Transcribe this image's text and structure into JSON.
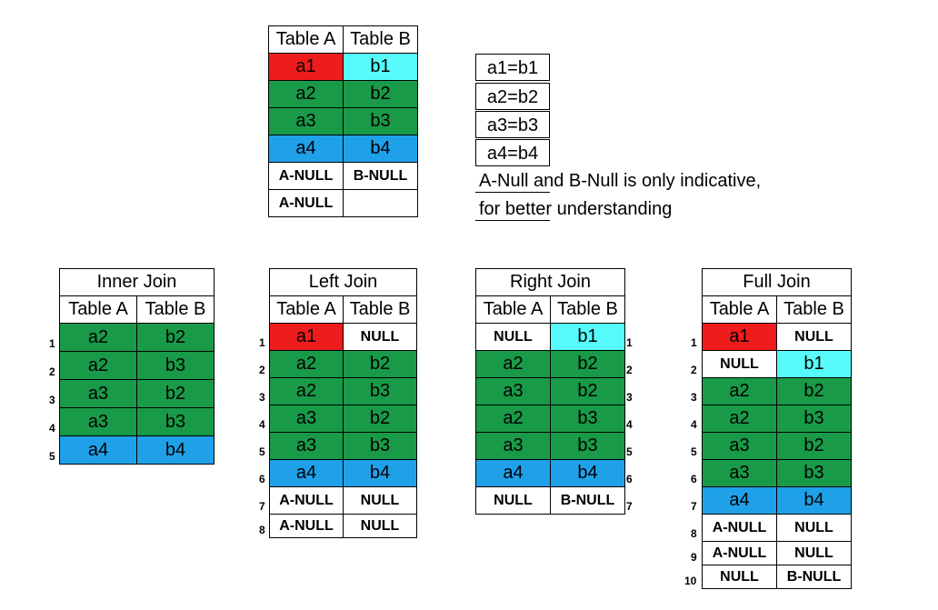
{
  "source": {
    "header": [
      "Table A",
      "Table B"
    ],
    "rows": [
      {
        "a": "a1",
        "b": "b1",
        "ca": "red",
        "cb": "cyan"
      },
      {
        "a": "a2",
        "b": "b2",
        "ca": "green",
        "cb": "green"
      },
      {
        "a": "a3",
        "b": "b3",
        "ca": "green",
        "cb": "green"
      },
      {
        "a": "a4",
        "b": "b4",
        "ca": "blue",
        "cb": "blue"
      },
      {
        "a": "A-NULL",
        "b": "B-NULL",
        "ca": "white",
        "cb": "white",
        "bold": true
      },
      {
        "a": "A-NULL",
        "b": "",
        "ca": "white",
        "cb": "white",
        "bold": true
      }
    ]
  },
  "equalities": [
    "a1=b1",
    "a2=b2",
    "a3=b3",
    "a4=b4"
  ],
  "note": [
    "A-Null and B-Null is only indicative,",
    "for better understanding"
  ],
  "colors": {
    "red": "#ee1c1c",
    "cyan": "#57fbfb",
    "green": "#199a48",
    "blue": "#1fa1e9",
    "white": "#ffffff"
  },
  "joins": [
    {
      "title": "Inner Join",
      "header": [
        "Table A",
        "Table B"
      ],
      "rows": [
        {
          "n": "1",
          "a": "a2",
          "b": "b2",
          "ca": "green",
          "cb": "green"
        },
        {
          "n": "2",
          "a": "a2",
          "b": "b3",
          "ca": "green",
          "cb": "green"
        },
        {
          "n": "3",
          "a": "a3",
          "b": "b2",
          "ca": "green",
          "cb": "green"
        },
        {
          "n": "4",
          "a": "a3",
          "b": "b3",
          "ca": "green",
          "cb": "green"
        },
        {
          "n": "5",
          "a": "a4",
          "b": "b4",
          "ca": "blue",
          "cb": "blue"
        }
      ]
    },
    {
      "title": "Left Join",
      "header": [
        "Table A",
        "Table B"
      ],
      "rows": [
        {
          "n": "1",
          "a": "a1",
          "b": "NULL",
          "ca": "red",
          "cb": "white",
          "boldB": true
        },
        {
          "n": "2",
          "a": "a2",
          "b": "b2",
          "ca": "green",
          "cb": "green"
        },
        {
          "n": "3",
          "a": "a2",
          "b": "b3",
          "ca": "green",
          "cb": "green"
        },
        {
          "n": "4",
          "a": "a3",
          "b": "b2",
          "ca": "green",
          "cb": "green"
        },
        {
          "n": "5",
          "a": "a3",
          "b": "b3",
          "ca": "green",
          "cb": "green"
        },
        {
          "n": "6",
          "a": "a4",
          "b": "b4",
          "ca": "blue",
          "cb": "blue"
        },
        {
          "n": "7",
          "a": "A-NULL",
          "b": "NULL",
          "ca": "white",
          "cb": "white",
          "bold": true
        },
        {
          "n": "8",
          "a": "A-NULL",
          "b": "NULL",
          "ca": "white",
          "cb": "white",
          "bold": true
        }
      ]
    },
    {
      "title": "Right Join",
      "header": [
        "Table A",
        "Table B"
      ],
      "rows": [
        {
          "n": "1",
          "a": "NULL",
          "b": "b1",
          "ca": "white",
          "cb": "cyan",
          "boldA": true
        },
        {
          "n": "2",
          "a": "a2",
          "b": "b2",
          "ca": "green",
          "cb": "green"
        },
        {
          "n": "3",
          "a": "a3",
          "b": "b2",
          "ca": "green",
          "cb": "green"
        },
        {
          "n": "4",
          "a": "a2",
          "b": "b3",
          "ca": "green",
          "cb": "green"
        },
        {
          "n": "5",
          "a": "a3",
          "b": "b3",
          "ca": "green",
          "cb": "green"
        },
        {
          "n": "6",
          "a": "a4",
          "b": "b4",
          "ca": "blue",
          "cb": "blue"
        },
        {
          "n": "7",
          "a": "NULL",
          "b": "B-NULL",
          "ca": "white",
          "cb": "white",
          "bold": true
        }
      ]
    },
    {
      "title": "Full Join",
      "header": [
        "Table A",
        "Table B"
      ],
      "rows": [
        {
          "n": "1",
          "a": "a1",
          "b": "NULL",
          "ca": "red",
          "cb": "white",
          "boldB": true
        },
        {
          "n": "2",
          "a": "NULL",
          "b": "b1",
          "ca": "white",
          "cb": "cyan",
          "boldA": true
        },
        {
          "n": "3",
          "a": "a2",
          "b": "b2",
          "ca": "green",
          "cb": "green"
        },
        {
          "n": "4",
          "a": "a2",
          "b": "b3",
          "ca": "green",
          "cb": "green"
        },
        {
          "n": "5",
          "a": "a3",
          "b": "b2",
          "ca": "green",
          "cb": "green"
        },
        {
          "n": "6",
          "a": "a3",
          "b": "b3",
          "ca": "green",
          "cb": "green"
        },
        {
          "n": "7",
          "a": "a4",
          "b": "b4",
          "ca": "blue",
          "cb": "blue"
        },
        {
          "n": "8",
          "a": "A-NULL",
          "b": "NULL",
          "ca": "white",
          "cb": "white",
          "bold": true
        },
        {
          "n": "9",
          "a": "A-NULL",
          "b": "NULL",
          "ca": "white",
          "cb": "white",
          "bold": true
        },
        {
          "n": "10",
          "a": "NULL",
          "b": "B-NULL",
          "ca": "white",
          "cb": "white",
          "bold": true
        }
      ]
    }
  ]
}
